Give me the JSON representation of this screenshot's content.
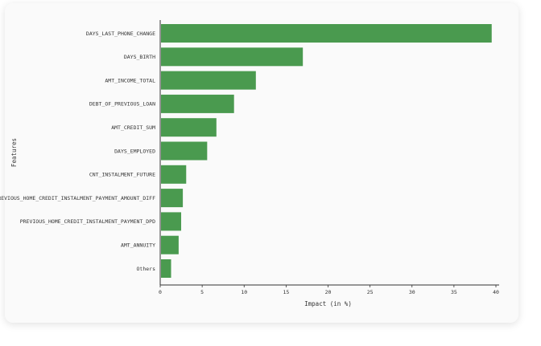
{
  "chart_data": {
    "type": "bar",
    "orientation": "horizontal",
    "categories": [
      "DAYS_LAST_PHONE_CHANGE",
      "DAYS_BIRTH",
      "AMT_INCOME_TOTAL",
      "DEBT_OF_PREVIOUS_LOAN",
      "AMT_CREDIT_SUM",
      "DAYS_EMPLOYED",
      "CNT_INSTALMENT_FUTURE",
      "PREVIOUS_HOME_CREDIT_INSTALMENT_PAYMENT_AMOUNT_DIFF",
      "PREVIOUS_HOME_CREDIT_INSTALMENT_PAYMENT_DPD",
      "AMT_ANNUITY",
      "Others"
    ],
    "values": [
      39.4,
      16.9,
      11.3,
      8.7,
      6.6,
      5.5,
      3.0,
      2.6,
      2.4,
      2.1,
      1.2
    ],
    "xlabel": "Impact (in %)",
    "ylabel": "Features",
    "xlim": [
      0,
      40
    ],
    "xticks": [
      "0",
      "5",
      "10",
      "15",
      "20",
      "25",
      "30",
      "35",
      "40"
    ],
    "bar_color": "#4a9a4f",
    "grid": false
  }
}
